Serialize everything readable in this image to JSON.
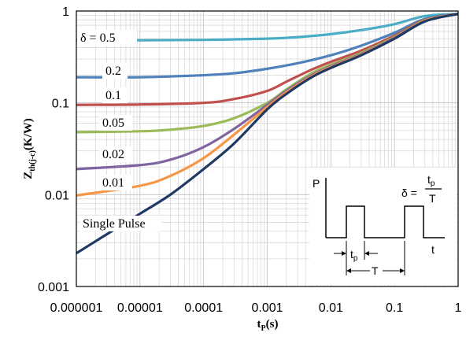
{
  "chart_data": {
    "type": "line",
    "xscale": "log",
    "yscale": "log",
    "xlim": [
      1e-06,
      1
    ],
    "ylim": [
      0.001,
      1
    ],
    "grid": true,
    "xticks": [
      "0.000001",
      "0.00001",
      "0.0001",
      "0.001",
      "0.01",
      "0.1",
      "1"
    ],
    "yticks": [
      "0.001",
      "0.01",
      "0.1",
      "1"
    ],
    "ylabel_main": "Z",
    "ylabel_sub": "th(j-c)",
    "ylabel_unit": "(K/W)",
    "xlabel_main": "t",
    "xlabel_sub": "P",
    "xlabel_unit": "(s)",
    "series": [
      {
        "name": "δ = 0.5",
        "color": "#4bacc6",
        "x": [
          1e-06,
          1e-05,
          0.0001,
          0.001,
          0.003,
          0.01,
          0.03,
          0.1,
          0.3,
          1
        ],
        "y": [
          0.48,
          0.48,
          0.485,
          0.5,
          0.52,
          0.56,
          0.62,
          0.72,
          0.88,
          0.93
        ]
      },
      {
        "name": "0.2",
        "color": "#4f81bd",
        "x": [
          1e-06,
          1e-05,
          0.0001,
          0.0003,
          0.001,
          0.003,
          0.01,
          0.03,
          0.1,
          0.3,
          1
        ],
        "y": [
          0.19,
          0.19,
          0.2,
          0.21,
          0.235,
          0.27,
          0.33,
          0.42,
          0.58,
          0.82,
          0.93
        ]
      },
      {
        "name": "0.1",
        "color": "#c0504d",
        "x": [
          1e-06,
          1e-05,
          0.0001,
          0.0003,
          0.001,
          0.002,
          0.005,
          0.01,
          0.03,
          0.1,
          0.3,
          1
        ],
        "y": [
          0.095,
          0.096,
          0.1,
          0.11,
          0.135,
          0.17,
          0.23,
          0.28,
          0.37,
          0.54,
          0.8,
          0.93
        ]
      },
      {
        "name": "0.05",
        "color": "#9bbb59",
        "x": [
          1e-06,
          1e-05,
          3e-05,
          0.0001,
          0.0003,
          0.001,
          0.002,
          0.005,
          0.01,
          0.03,
          0.1,
          0.3,
          1
        ],
        "y": [
          0.048,
          0.049,
          0.051,
          0.056,
          0.068,
          0.1,
          0.14,
          0.21,
          0.26,
          0.35,
          0.52,
          0.79,
          0.93
        ]
      },
      {
        "name": "0.02",
        "color": "#8064a2",
        "x": [
          1e-06,
          1e-05,
          3e-05,
          0.0001,
          0.0003,
          0.001,
          0.002,
          0.005,
          0.01,
          0.03,
          0.1,
          0.3,
          1
        ],
        "y": [
          0.019,
          0.021,
          0.024,
          0.033,
          0.052,
          0.095,
          0.135,
          0.2,
          0.25,
          0.34,
          0.51,
          0.78,
          0.93
        ]
      },
      {
        "name": "0.01",
        "color": "#f79646",
        "x": [
          1e-06,
          1e-05,
          3e-05,
          0.0001,
          0.0003,
          0.001,
          0.002,
          0.005,
          0.01,
          0.03,
          0.1,
          0.3,
          1
        ],
        "y": [
          0.0098,
          0.0125,
          0.016,
          0.025,
          0.045,
          0.09,
          0.13,
          0.195,
          0.245,
          0.335,
          0.5,
          0.78,
          0.93
        ]
      },
      {
        "name": "Single Pulse",
        "color": "#1f3864",
        "x": [
          1e-06,
          3e-06,
          1e-05,
          3e-05,
          0.0001,
          0.0003,
          0.001,
          0.002,
          0.005,
          0.01,
          0.03,
          0.1,
          0.3,
          1
        ],
        "y": [
          0.0023,
          0.0037,
          0.0062,
          0.01,
          0.019,
          0.036,
          0.085,
          0.125,
          0.19,
          0.24,
          0.33,
          0.5,
          0.77,
          0.93
        ]
      }
    ],
    "curve_labels": [
      {
        "text": "δ = 0.5",
        "series": 0
      },
      {
        "text": "0.2",
        "series": 1
      },
      {
        "text": "0.1",
        "series": 2
      },
      {
        "text": "0.05",
        "series": 3
      },
      {
        "text": "0.02",
        "series": 4
      },
      {
        "text": "0.01",
        "series": 5
      },
      {
        "text": "Single Pulse",
        "series": 6
      }
    ],
    "inset": {
      "p_label": "P",
      "t_label": "t",
      "tp_label": "t",
      "tp_sub": "p",
      "T_label": "T",
      "delta_lhs": "δ =",
      "frac_num": "t",
      "frac_num_sub": "p",
      "frac_den": "T"
    }
  }
}
